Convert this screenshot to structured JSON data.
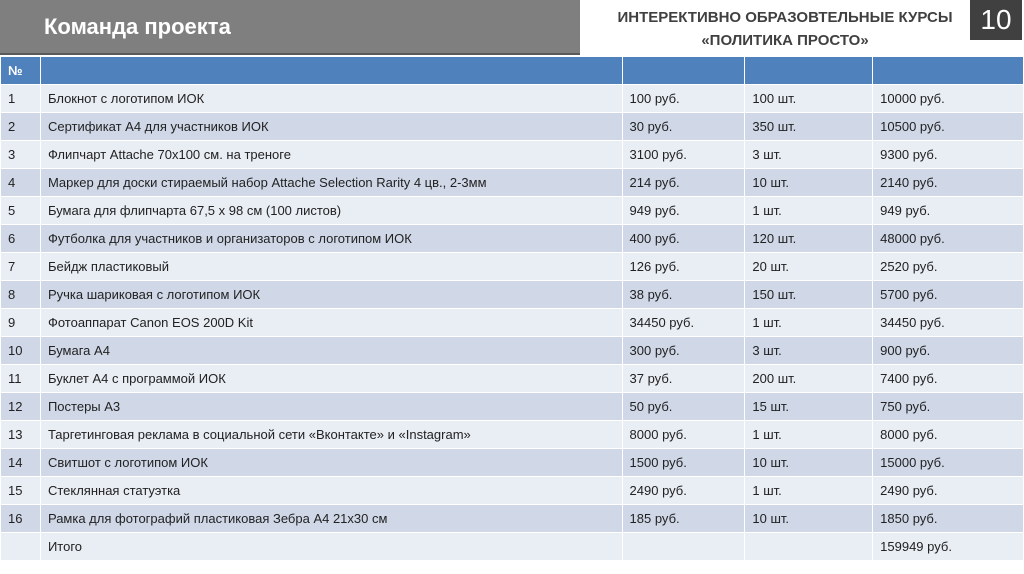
{
  "header": {
    "title": "Команда проекта",
    "subtitle_line1": "ИНТЕРЕКТИВНО ОБРАЗОВТЕЛЬНЫЕ КУРСЫ",
    "subtitle_line2": "«ПОЛИТИКА ПРОСТО»",
    "page_number": "10"
  },
  "table": {
    "number_header": "№",
    "rows": [
      [
        "1",
        "Блокнот с логотипом ИОК",
        "100 руб.",
        "100 шт.",
        "10000 руб."
      ],
      [
        "2",
        "Сертификат А4 для участников ИОК",
        "30 руб.",
        "350 шт.",
        "10500 руб."
      ],
      [
        "3",
        "Флипчарт Attache 70х100 см. на треноге",
        "3100 руб.",
        "3 шт.",
        "9300 руб."
      ],
      [
        "4",
        "Маркер для доски стираемый набор Attache Selection Rarity 4 цв., 2-3мм",
        "214 руб.",
        "10 шт.",
        "2140 руб."
      ],
      [
        "5",
        "Бумага для флипчарта 67,5 х 98 см (100 листов)",
        "949 руб.",
        "1 шт.",
        "949 руб."
      ],
      [
        "6",
        "Футболка для участников и организаторов с логотипом ИОК",
        "400 руб.",
        "120 шт.",
        "48000 руб."
      ],
      [
        "7",
        "Бейдж пластиковый",
        "126 руб.",
        "20 шт.",
        "2520 руб."
      ],
      [
        "8",
        "Ручка шариковая с логотипом ИОК",
        "38 руб.",
        "150 шт.",
        "5700 руб."
      ],
      [
        "9",
        "Фотоаппарат Canon EOS 200D Kit",
        "34450 руб.",
        "1 шт.",
        "34450 руб."
      ],
      [
        "10",
        "Бумага А4",
        "300 руб.",
        "3 шт.",
        "900 руб."
      ],
      [
        "11",
        "Буклет А4 с программой ИОК",
        "37 руб.",
        "200 шт.",
        "7400 руб."
      ],
      [
        "12",
        "Постеры А3",
        "50 руб.",
        "15 шт.",
        "750 руб."
      ],
      [
        "13",
        "Таргетинговая реклама в социальной сети «Вконтакте» и «Instagram»",
        "8000 руб.",
        "1 шт.",
        "8000 руб."
      ],
      [
        "14",
        "Свитшот с логотипом ИОК",
        "1500 руб.",
        "10 шт.",
        "15000 руб."
      ],
      [
        "15",
        "Стеклянная статуэтка",
        "2490 руб.",
        "1 шт.",
        "2490 руб."
      ],
      [
        "16",
        "Рамка для фотографий пластиковая Зебра А4 21х30 см",
        "185 руб.",
        "10 шт.",
        "1850 руб."
      ]
    ],
    "total": {
      "label": "Итого",
      "value": "159949 руб."
    }
  }
}
